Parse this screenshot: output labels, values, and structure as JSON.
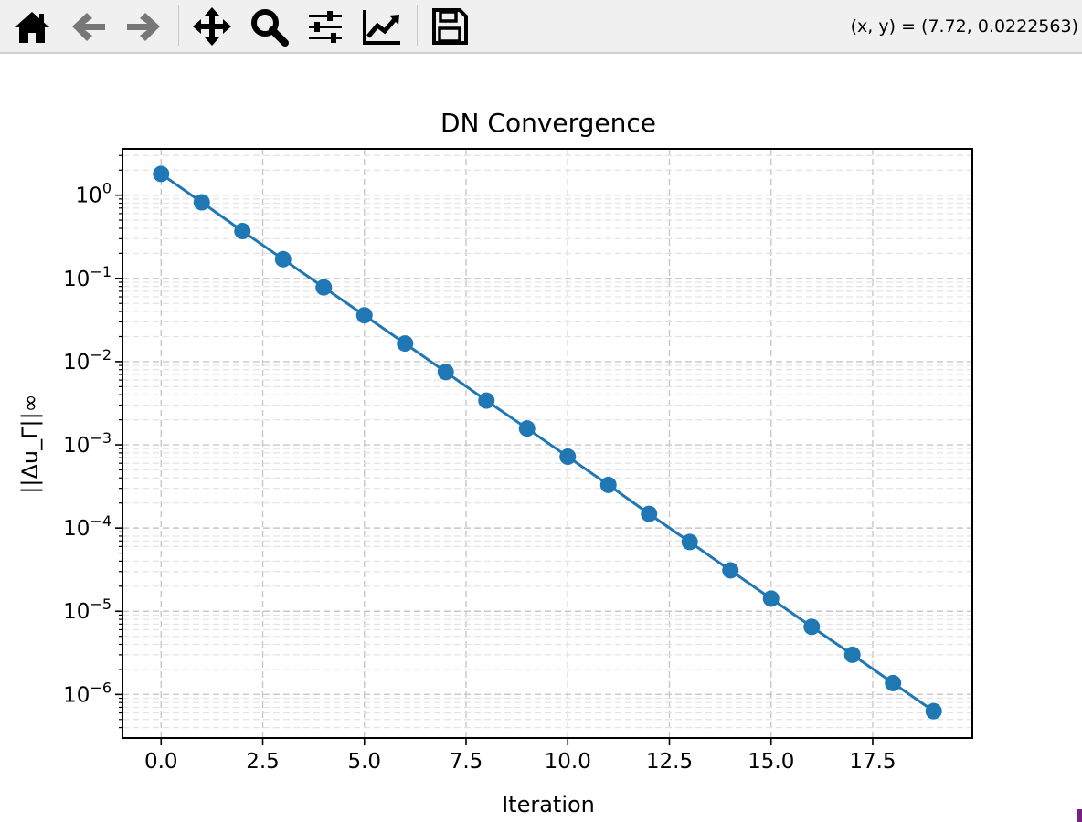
{
  "toolbar": {
    "buttons": [
      {
        "name": "home-button",
        "icon": "home-icon"
      },
      {
        "name": "back-button",
        "icon": "arrow-left-icon"
      },
      {
        "name": "forward-button",
        "icon": "arrow-right-icon"
      },
      {
        "name": "pan-button",
        "icon": "move-icon"
      },
      {
        "name": "zoom-button",
        "icon": "magnifier-icon"
      },
      {
        "name": "configure-subplots-button",
        "icon": "sliders-icon"
      },
      {
        "name": "edit-axes-button",
        "icon": "line-chart-icon"
      },
      {
        "name": "save-button",
        "icon": "floppy-disk-icon"
      }
    ],
    "coords": "(x, y) = (7.72, 0.0222563)"
  },
  "chart_data": {
    "type": "line",
    "title": "DN Convergence",
    "xlabel": "Iteration",
    "ylabel": "||Δu_Γ||∞",
    "yscale": "log",
    "xlim": [
      -0.95,
      19.95
    ],
    "ylim": [
      3e-07,
      3.6
    ],
    "xticks": [
      "0.0",
      "2.5",
      "5.0",
      "7.5",
      "10.0",
      "12.5",
      "15.0",
      "17.5"
    ],
    "yticks": [
      "10^0",
      "10^-1",
      "10^-2",
      "10^-3",
      "10^-4",
      "10^-5",
      "10^-6"
    ],
    "grid": true,
    "color": "#1f77b4",
    "x": [
      0,
      1,
      2,
      3,
      4,
      5,
      6,
      7,
      8,
      9,
      10,
      11,
      12,
      13,
      14,
      15,
      16,
      17,
      18,
      19
    ],
    "y": [
      1.8,
      0.82,
      0.37,
      0.17,
      0.078,
      0.036,
      0.0165,
      0.0075,
      0.0034,
      0.00157,
      0.00072,
      0.00033,
      0.000148,
      6.8e-05,
      3.1e-05,
      1.42e-05,
      6.5e-06,
      3e-06,
      1.37e-06,
      6.3e-07
    ]
  }
}
